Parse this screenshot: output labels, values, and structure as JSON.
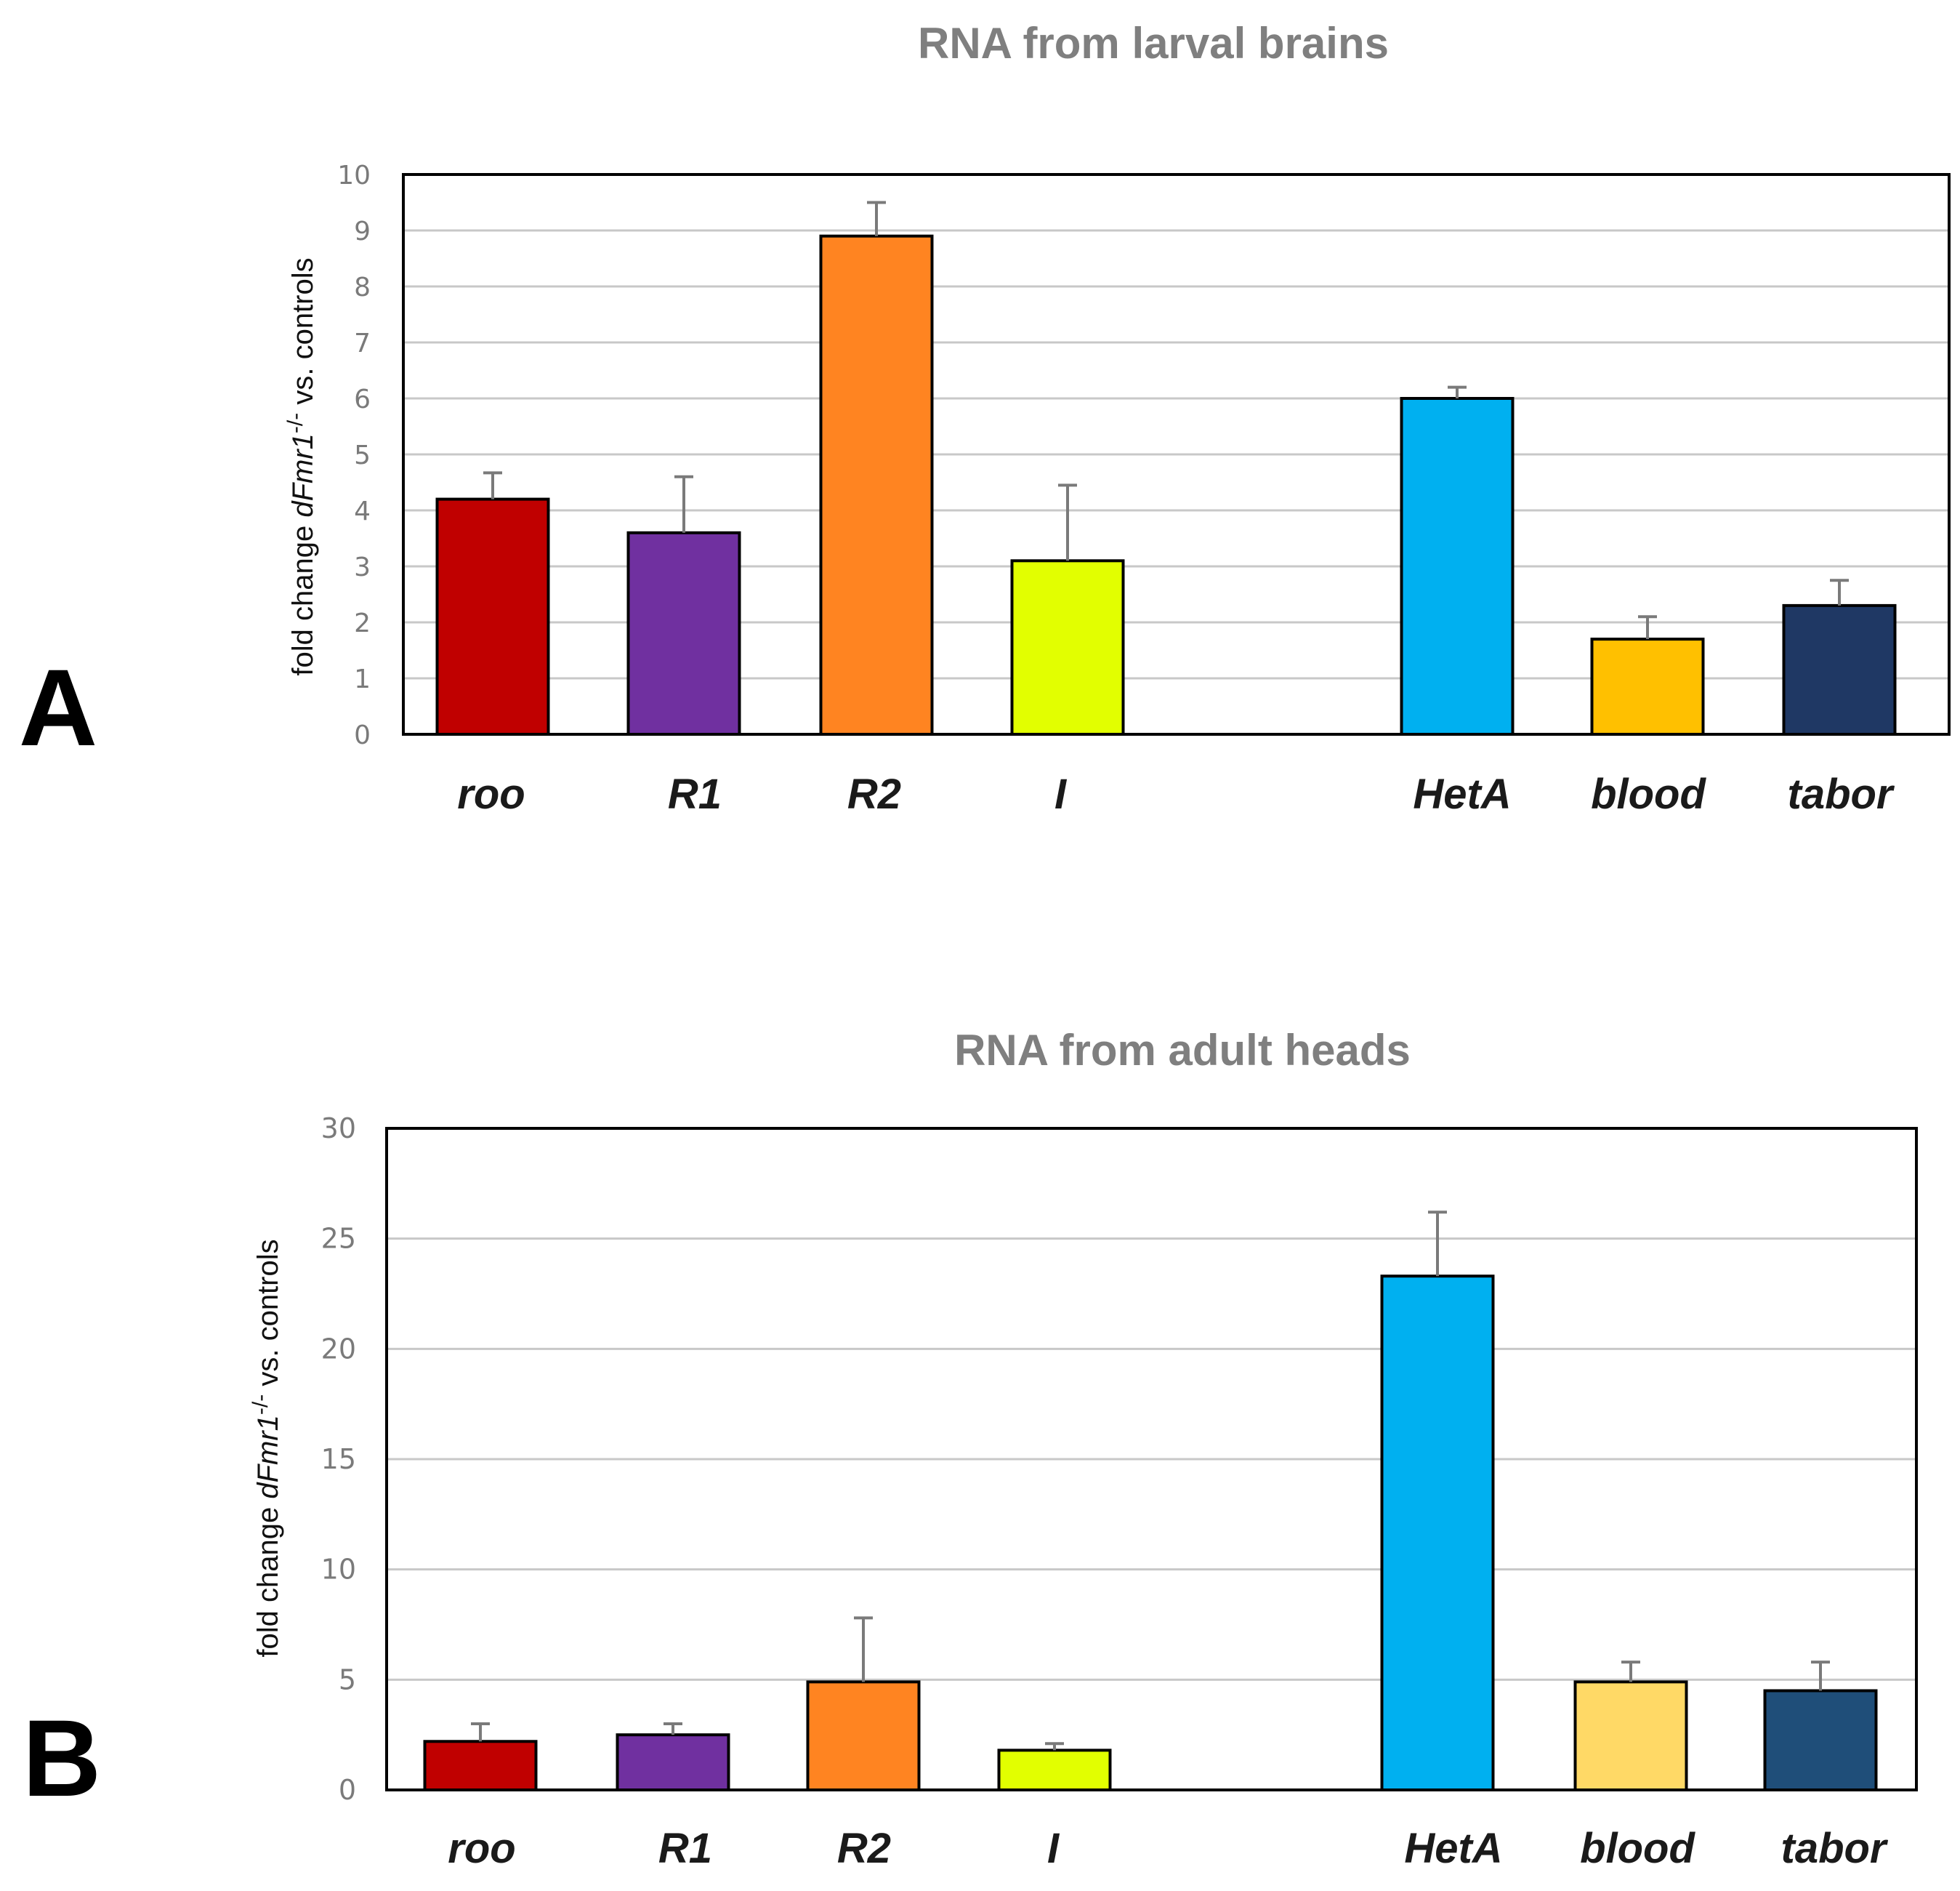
{
  "chart_data": [
    {
      "type": "bar",
      "panel_label": "A",
      "title": "RNA from larval brains",
      "ylabel": {
        "prefix": "fold change",
        "gene": "dFmr1",
        "sup": "-/-",
        "suffix": "vs. controls"
      },
      "xlabel": "",
      "ylim": [
        0,
        10
      ],
      "yticks": [
        "0",
        "1",
        "2",
        "3",
        "4",
        "5",
        "6",
        "7",
        "8",
        "9",
        "10"
      ],
      "grid": true,
      "categories": [
        "roo",
        "R1",
        "R2",
        "I",
        "",
        "HetA",
        "blood",
        "tabor"
      ],
      "values": [
        4.2,
        3.6,
        8.9,
        3.1,
        null,
        6.0,
        1.7,
        2.3
      ],
      "errors": [
        0.47,
        1.0,
        0.6,
        1.35,
        null,
        0.2,
        0.4,
        0.45
      ],
      "colors": [
        "#c00000",
        "#7030a0",
        "#ff8421",
        "#e2ff00",
        null,
        "#00b0f0",
        "#ffc000",
        "#1f3864"
      ]
    },
    {
      "type": "bar",
      "panel_label": "B",
      "title": "RNA from adult heads",
      "ylabel": {
        "prefix": "fold change",
        "gene": "dFmr1",
        "sup": "-/-",
        "suffix": "vs. controls"
      },
      "xlabel": "",
      "ylim": [
        0,
        30
      ],
      "yticks": [
        "0",
        "5",
        "10",
        "15",
        "20",
        "25",
        "30"
      ],
      "grid": true,
      "categories": [
        "roo",
        "R1",
        "R2",
        "I",
        "",
        "HetA",
        "blood",
        "tabor"
      ],
      "values": [
        2.2,
        2.5,
        4.9,
        1.8,
        null,
        23.3,
        4.9,
        4.5
      ],
      "errors": [
        0.8,
        0.5,
        2.9,
        0.3,
        null,
        2.9,
        0.9,
        1.3
      ],
      "colors": [
        "#c00000",
        "#7030a0",
        "#ff8421",
        "#e2ff00",
        null,
        "#00b0f0",
        "#ffd966",
        "#1f4e79"
      ]
    }
  ]
}
